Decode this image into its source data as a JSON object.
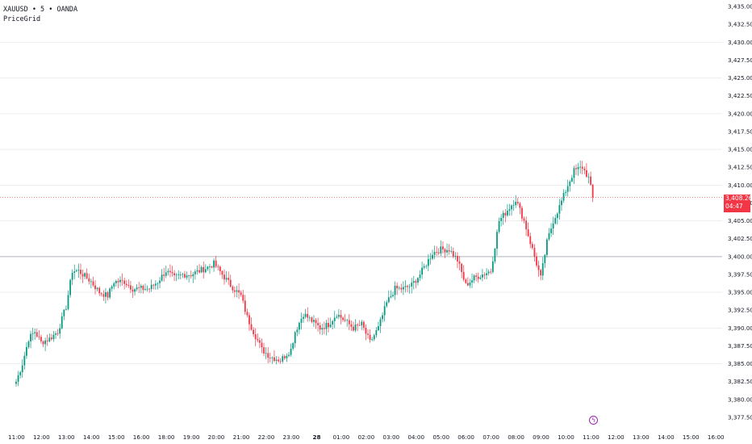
{
  "legend": {
    "title": "XAUUSD • 5 • OANDA",
    "indicator": "PriceGrid"
  },
  "colors": {
    "up": "#089981",
    "down": "#f23645",
    "grid": "#e0e3eb",
    "price_line": "#f23645",
    "axis_text": "#131722",
    "event": "#9c27b0"
  },
  "price_tag": {
    "price": "3,408.265",
    "countdown": "04:47"
  },
  "event_icon": "lightning-icon",
  "chart_data": {
    "type": "candlestick",
    "symbol": "XAUUSD",
    "interval": "5",
    "source": "OANDA",
    "ylim": [
      3377.5,
      3435.0
    ],
    "yticks": [
      "3,435.000",
      "3,432.500",
      "3,430.000",
      "3,427.500",
      "3,425.000",
      "3,422.500",
      "3,420.000",
      "3,417.500",
      "3,415.000",
      "3,412.500",
      "3,410.000",
      "3,407.500",
      "3,405.000",
      "3,402.500",
      "3,400.000",
      "3,397.500",
      "3,395.000",
      "3,392.500",
      "3,390.000",
      "3,387.500",
      "3,385.000",
      "3,382.500",
      "3,380.000",
      "3,377.500"
    ],
    "grid_levels": [
      3430.0,
      3425.0,
      3420.0,
      3415.0,
      3410.0,
      3405.0,
      3400.0,
      3395.0,
      3390.0,
      3385.0
    ],
    "highlight_level": 3400.0,
    "current_price": 3408.265,
    "xticks": [
      {
        "label": "11:00",
        "pos": 0
      },
      {
        "label": "12:00",
        "pos": 12
      },
      {
        "label": "13:00",
        "pos": 24
      },
      {
        "label": "14:00",
        "pos": 36
      },
      {
        "label": "15:00",
        "pos": 48
      },
      {
        "label": "16:00",
        "pos": 60
      },
      {
        "label": "18:00",
        "pos": 72
      },
      {
        "label": "19:00",
        "pos": 84
      },
      {
        "label": "20:00",
        "pos": 96
      },
      {
        "label": "21:00",
        "pos": 108
      },
      {
        "label": "22:00",
        "pos": 120
      },
      {
        "label": "23:00",
        "pos": 132
      },
      {
        "label": "28",
        "pos": 144,
        "bold": true
      },
      {
        "label": "01:00",
        "pos": 156
      },
      {
        "label": "02:00",
        "pos": 168
      },
      {
        "label": "03:00",
        "pos": 180
      },
      {
        "label": "04:00",
        "pos": 192
      },
      {
        "label": "05:00",
        "pos": 204
      },
      {
        "label": "06:00",
        "pos": 216
      },
      {
        "label": "07:00",
        "pos": 228
      },
      {
        "label": "08:00",
        "pos": 240
      },
      {
        "label": "09:00",
        "pos": 252
      },
      {
        "label": "10:00",
        "pos": 264
      },
      {
        "label": "11:00",
        "pos": 276
      },
      {
        "label": "12:00",
        "pos": 288
      },
      {
        "label": "13:00",
        "pos": 300
      },
      {
        "label": "14:00",
        "pos": 312
      },
      {
        "label": "15:00",
        "pos": 324
      },
      {
        "label": "16:00",
        "pos": 336
      }
    ],
    "close_anchors": [
      [
        0,
        3382.5
      ],
      [
        3,
        3385.0
      ],
      [
        6,
        3388.5
      ],
      [
        9,
        3389.5
      ],
      [
        12,
        3388.0
      ],
      [
        16,
        3388.5
      ],
      [
        20,
        3389.5
      ],
      [
        24,
        3393.0
      ],
      [
        27,
        3398.0
      ],
      [
        30,
        3398.0
      ],
      [
        36,
        3396.5
      ],
      [
        40,
        3395.0
      ],
      [
        44,
        3394.5
      ],
      [
        47,
        3396.5
      ],
      [
        52,
        3396.5
      ],
      [
        56,
        3395.5
      ],
      [
        60,
        3395.5
      ],
      [
        64,
        3395.5
      ],
      [
        68,
        3396.5
      ],
      [
        72,
        3398.0
      ],
      [
        76,
        3397.0
      ],
      [
        80,
        3397.5
      ],
      [
        84,
        3397.5
      ],
      [
        88,
        3398.0
      ],
      [
        92,
        3398.5
      ],
      [
        95,
        3399.0
      ],
      [
        99,
        3397.5
      ],
      [
        103,
        3396.0
      ],
      [
        108,
        3394.5
      ],
      [
        111,
        3391.5
      ],
      [
        114,
        3389.5
      ],
      [
        118,
        3387.0
      ],
      [
        122,
        3386.0
      ],
      [
        127,
        3385.5
      ],
      [
        132,
        3387.0
      ],
      [
        134,
        3389.5
      ],
      [
        138,
        3392.0
      ],
      [
        142,
        3391.0
      ],
      [
        146,
        3390.0
      ],
      [
        150,
        3390.5
      ],
      [
        154,
        3392.0
      ],
      [
        158,
        3391.0
      ],
      [
        162,
        3390.0
      ],
      [
        166,
        3390.5
      ],
      [
        170,
        3388.0
      ],
      [
        174,
        3390.0
      ],
      [
        178,
        3393.5
      ],
      [
        182,
        3395.5
      ],
      [
        186,
        3395.5
      ],
      [
        190,
        3396.0
      ],
      [
        194,
        3397.5
      ],
      [
        196,
        3398.5
      ],
      [
        200,
        3400.5
      ],
      [
        204,
        3401.0
      ],
      [
        208,
        3401.0
      ],
      [
        212,
        3399.5
      ],
      [
        216,
        3396.0
      ],
      [
        220,
        3397.0
      ],
      [
        224,
        3397.5
      ],
      [
        228,
        3398.0
      ],
      [
        232,
        3405.0
      ],
      [
        236,
        3406.5
      ],
      [
        240,
        3408.0
      ],
      [
        244,
        3405.0
      ],
      [
        246,
        3403.0
      ],
      [
        250,
        3399.0
      ],
      [
        252,
        3397.0
      ],
      [
        255,
        3402.0
      ],
      [
        258,
        3405.0
      ],
      [
        261,
        3407.0
      ],
      [
        265,
        3410.0
      ],
      [
        268,
        3412.0
      ],
      [
        272,
        3412.5
      ],
      [
        275,
        3411.0
      ],
      [
        277,
        3408.3
      ]
    ]
  }
}
